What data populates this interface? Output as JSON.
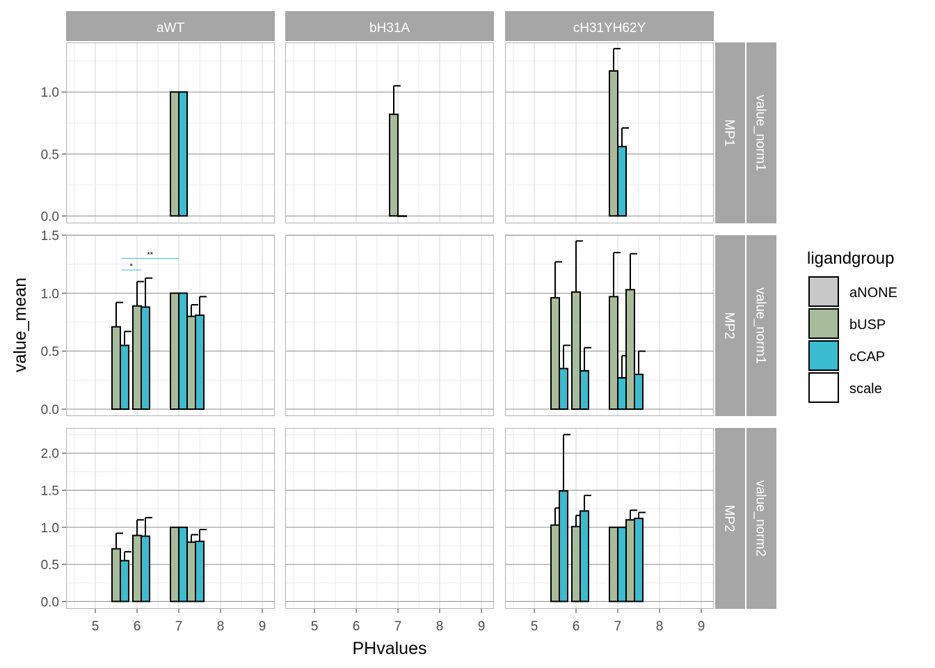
{
  "chart_data": {
    "type": "bar",
    "facet_columns": [
      "aWT",
      "bH31A",
      "cH31YH62Y"
    ],
    "facet_rows": [
      {
        "inner": "MP1",
        "outer": "value_norm1"
      },
      {
        "inner": "MP2",
        "outer": "value_norm1"
      },
      {
        "inner": "MP2",
        "outer": "value_norm2"
      }
    ],
    "xlabel": "PHvalues",
    "ylabel": "value_mean",
    "x_ticks": [
      "5",
      "6",
      "7",
      "8",
      "9"
    ],
    "xlim": [
      4.3,
      9.3
    ],
    "row_axes": [
      {
        "ylim": [
          -0.06,
          1.4
        ],
        "ticks": [
          "0.0",
          "0.5",
          "1.0"
        ]
      },
      {
        "ylim": [
          -0.06,
          1.5
        ],
        "ticks": [
          "0.0",
          "0.5",
          "1.0",
          "1.5"
        ]
      },
      {
        "ylim": [
          -0.1,
          2.34
        ],
        "ticks": [
          "0.0",
          "0.5",
          "1.0",
          "1.5",
          "2.0"
        ]
      }
    ],
    "legend": {
      "title": "ligandgroup",
      "position": "right",
      "entries": [
        {
          "label": "aNONE",
          "color": "#c8c8c8"
        },
        {
          "label": "bUSP",
          "color": "#a8bc9c"
        },
        {
          "label": "cCAP",
          "color": "#3bbcd0"
        },
        {
          "label": "scale",
          "color": "#ffffff"
        }
      ]
    },
    "colors": {
      "bUSP": "#a8bc9c",
      "cCAP": "#3bbcd0",
      "strip": "#a6a6a6",
      "bracket": "#3bbcd0"
    },
    "panels": [
      {
        "row": 0,
        "col": 0,
        "bars": [
          {
            "x": 6.9,
            "group": "bUSP",
            "value": 1.0
          },
          {
            "x": 7.1,
            "group": "cCAP",
            "value": 1.0
          }
        ]
      },
      {
        "row": 0,
        "col": 1,
        "bars": [
          {
            "x": 6.9,
            "group": "bUSP",
            "value": 0.82,
            "err": 1.05
          },
          {
            "x": 7.1,
            "group": "cCAP",
            "value": 0.0
          }
        ]
      },
      {
        "row": 0,
        "col": 2,
        "bars": [
          {
            "x": 6.9,
            "group": "bUSP",
            "value": 1.17,
            "err": 1.35
          },
          {
            "x": 7.1,
            "group": "cCAP",
            "value": 0.56,
            "err": 0.71
          }
        ]
      },
      {
        "row": 1,
        "col": 0,
        "bars": [
          {
            "x": 5.5,
            "group": "bUSP",
            "value": 0.71,
            "err": 0.92
          },
          {
            "x": 5.7,
            "group": "cCAP",
            "value": 0.55,
            "err": 0.67
          },
          {
            "x": 6.0,
            "group": "bUSP",
            "value": 0.89,
            "err": 1.1
          },
          {
            "x": 6.2,
            "group": "cCAP",
            "value": 0.88,
            "err": 1.13
          },
          {
            "x": 6.9,
            "group": "bUSP",
            "value": 1.0
          },
          {
            "x": 7.1,
            "group": "cCAP",
            "value": 1.0
          },
          {
            "x": 7.3,
            "group": "bUSP",
            "value": 0.8,
            "err": 0.9
          },
          {
            "x": 7.5,
            "group": "cCAP",
            "value": 0.81,
            "err": 0.97
          }
        ],
        "brackets": [
          {
            "x1": 5.62,
            "x2": 6.1,
            "y": 1.2,
            "label": "*"
          },
          {
            "x1": 5.62,
            "x2": 7.0,
            "y": 1.3,
            "label": "**"
          }
        ]
      },
      {
        "row": 1,
        "col": 1,
        "bars": []
      },
      {
        "row": 1,
        "col": 2,
        "bars": [
          {
            "x": 5.5,
            "group": "bUSP",
            "value": 0.96,
            "err": 1.27
          },
          {
            "x": 5.7,
            "group": "cCAP",
            "value": 0.35,
            "err": 0.55
          },
          {
            "x": 6.0,
            "group": "bUSP",
            "value": 1.01,
            "err": 1.45
          },
          {
            "x": 6.2,
            "group": "cCAP",
            "value": 0.33,
            "err": 0.53
          },
          {
            "x": 6.9,
            "group": "bUSP",
            "value": 0.97,
            "err": 1.35
          },
          {
            "x": 7.1,
            "group": "cCAP",
            "value": 0.27,
            "err": 0.46
          },
          {
            "x": 7.3,
            "group": "bUSP",
            "value": 1.03,
            "err": 1.34
          },
          {
            "x": 7.5,
            "group": "cCAP",
            "value": 0.3,
            "err": 0.5
          }
        ]
      },
      {
        "row": 2,
        "col": 0,
        "bars": [
          {
            "x": 5.5,
            "group": "bUSP",
            "value": 0.71,
            "err": 0.92
          },
          {
            "x": 5.7,
            "group": "cCAP",
            "value": 0.55,
            "err": 0.67
          },
          {
            "x": 6.0,
            "group": "bUSP",
            "value": 0.89,
            "err": 1.1
          },
          {
            "x": 6.2,
            "group": "cCAP",
            "value": 0.88,
            "err": 1.13
          },
          {
            "x": 6.9,
            "group": "bUSP",
            "value": 1.0
          },
          {
            "x": 7.1,
            "group": "cCAP",
            "value": 1.0
          },
          {
            "x": 7.3,
            "group": "bUSP",
            "value": 0.8,
            "err": 0.9
          },
          {
            "x": 7.5,
            "group": "cCAP",
            "value": 0.81,
            "err": 0.97
          }
        ]
      },
      {
        "row": 2,
        "col": 1,
        "bars": []
      },
      {
        "row": 2,
        "col": 2,
        "bars": [
          {
            "x": 5.5,
            "group": "bUSP",
            "value": 1.03,
            "err": 1.26
          },
          {
            "x": 5.7,
            "group": "cCAP",
            "value": 1.49,
            "err": 2.25
          },
          {
            "x": 6.0,
            "group": "bUSP",
            "value": 1.01,
            "err": 1.16
          },
          {
            "x": 6.2,
            "group": "cCAP",
            "value": 1.22,
            "err": 1.43
          },
          {
            "x": 6.9,
            "group": "bUSP",
            "value": 1.0
          },
          {
            "x": 7.1,
            "group": "cCAP",
            "value": 1.0
          },
          {
            "x": 7.3,
            "group": "bUSP",
            "value": 1.1,
            "err": 1.23
          },
          {
            "x": 7.5,
            "group": "cCAP",
            "value": 1.12,
            "err": 1.2
          }
        ]
      }
    ]
  }
}
